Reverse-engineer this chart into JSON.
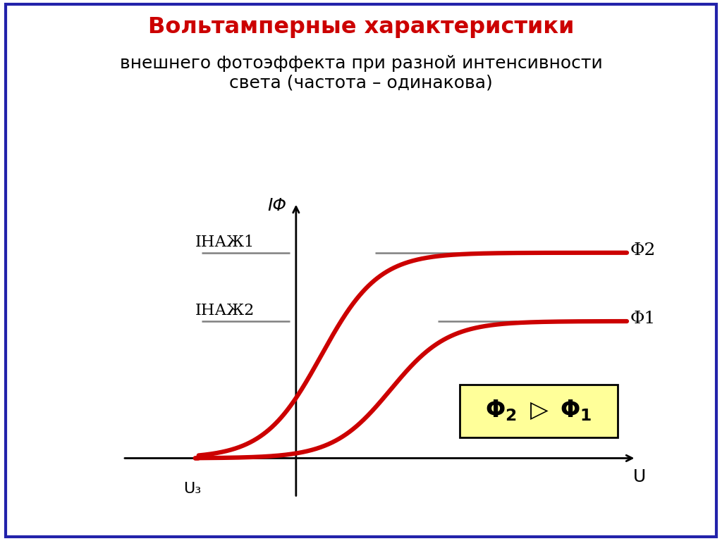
{
  "title_bold": "Вольтамперные характеристики",
  "title_normal": "внешнего фотоэффекта при разной интенсивности\nсвета (частота – одинакова)",
  "xlabel": "U",
  "ylabel": "IΦ",
  "inac1_label": "IНАЖ1",
  "inac2_label": "IНАЖ2",
  "uz_label": "U₃",
  "phi1_label": "Φ1",
  "phi2_label": "Φ2",
  "box_label": "Φ2 ▷ Φ1",
  "title_color": "#cc0000",
  "curve_color": "#cc0000",
  "dash_color": "#808080",
  "box_bg": "#ffff99",
  "box_edge": "#000000",
  "background": "#ffffff",
  "border_color": "#2222aa",
  "sat1": 0.52,
  "sat2": 0.78,
  "uz": -0.32,
  "mid1": 0.3,
  "mid2": 0.08,
  "k1": 11.0,
  "k2": 11.0,
  "xlim": [
    -0.55,
    1.1
  ],
  "ylim": [
    -0.15,
    1.0
  ]
}
